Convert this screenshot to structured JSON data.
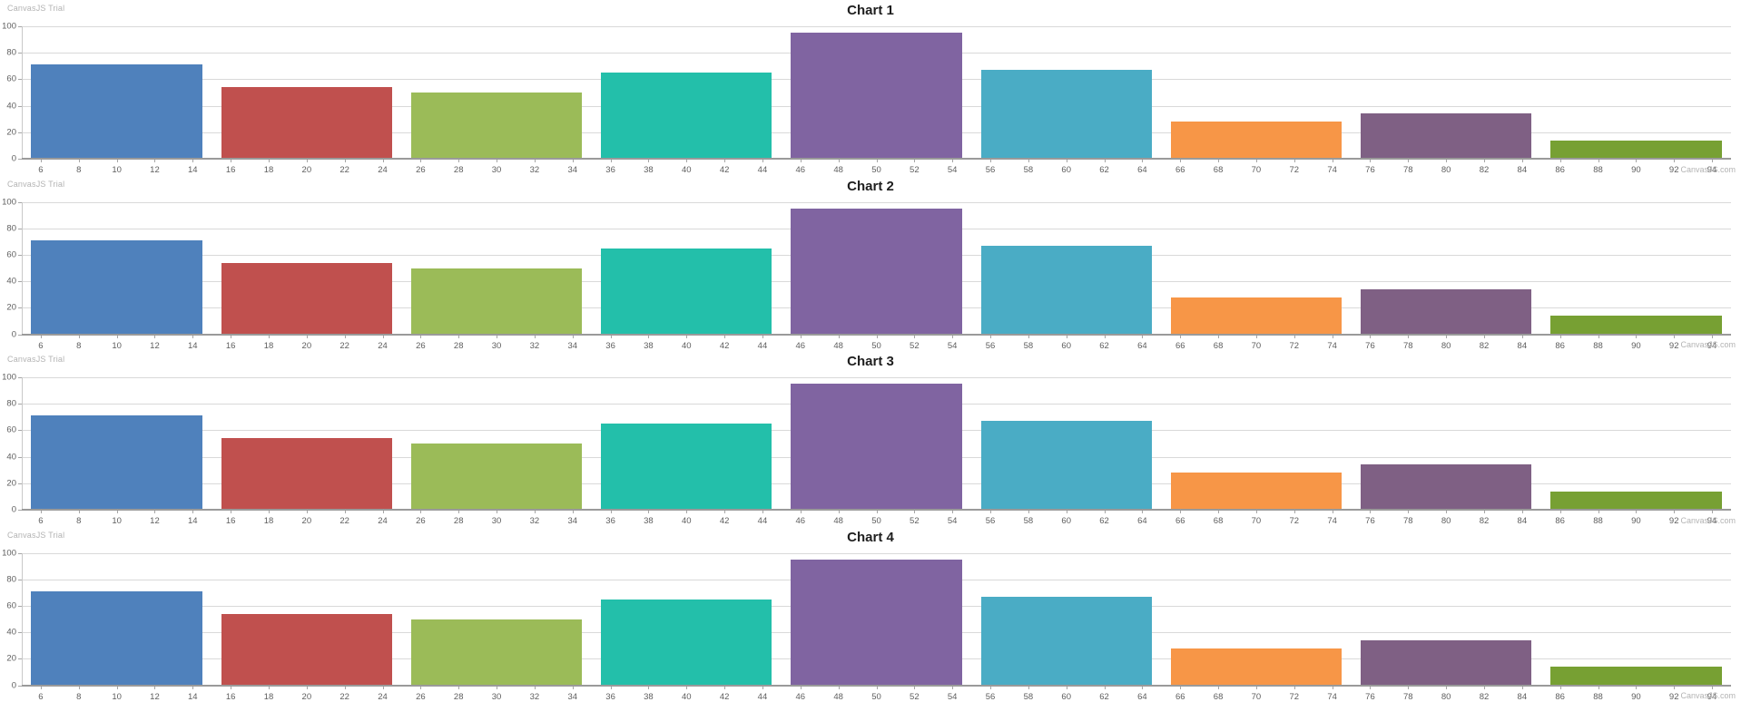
{
  "branding": {
    "trial_label": "CanvasJS Trial",
    "credit_label": "CanvasJS.com"
  },
  "colors": {
    "background": "#ffffff",
    "gridline": "#d9d9d9",
    "axis_line": "#9a9a9a",
    "tick": "#a6a6a6",
    "axis_label": "#5e5e5e",
    "title": "#1e1e1e",
    "watermark": "#b3b3b3"
  },
  "chart_data": [
    {
      "type": "bar",
      "title": "Chart 1",
      "x_centers": [
        10,
        20,
        30,
        40,
        50,
        60,
        70,
        80,
        90
      ],
      "values": [
        71,
        54,
        50,
        65,
        95,
        67,
        28,
        34,
        14
      ],
      "bar_width_x": 9,
      "bar_colors": [
        "#4F81BC",
        "#C0504E",
        "#9BBB58",
        "#23BFAA",
        "#8064A1",
        "#4AACC5",
        "#F79647",
        "#7F6084",
        "#77A033"
      ],
      "xlim": [
        5,
        95
      ],
      "ylim": [
        0,
        100
      ],
      "x_ticks": {
        "start": 6,
        "end": 94,
        "step": 2
      },
      "y_ticks": [
        0,
        20,
        40,
        60,
        80,
        100
      ],
      "grid": "horizontal",
      "legend": "none",
      "trial_label": "CanvasJS Trial",
      "credit_label": "CanvasJS.com"
    },
    {
      "type": "bar",
      "title": "Chart 2",
      "x_centers": [
        10,
        20,
        30,
        40,
        50,
        60,
        70,
        80,
        90
      ],
      "values": [
        71,
        54,
        50,
        65,
        95,
        67,
        28,
        34,
        14
      ],
      "bar_width_x": 9,
      "bar_colors": [
        "#4F81BC",
        "#C0504E",
        "#9BBB58",
        "#23BFAA",
        "#8064A1",
        "#4AACC5",
        "#F79647",
        "#7F6084",
        "#77A033"
      ],
      "xlim": [
        5,
        95
      ],
      "ylim": [
        0,
        100
      ],
      "x_ticks": {
        "start": 6,
        "end": 94,
        "step": 2
      },
      "y_ticks": [
        0,
        20,
        40,
        60,
        80,
        100
      ],
      "grid": "horizontal",
      "legend": "none",
      "trial_label": "CanvasJS Trial",
      "credit_label": "CanvasJS.com"
    },
    {
      "type": "bar",
      "title": "Chart 3",
      "x_centers": [
        10,
        20,
        30,
        40,
        50,
        60,
        70,
        80,
        90
      ],
      "values": [
        71,
        54,
        50,
        65,
        95,
        67,
        28,
        34,
        14
      ],
      "bar_width_x": 9,
      "bar_colors": [
        "#4F81BC",
        "#C0504E",
        "#9BBB58",
        "#23BFAA",
        "#8064A1",
        "#4AACC5",
        "#F79647",
        "#7F6084",
        "#77A033"
      ],
      "xlim": [
        5,
        95
      ],
      "ylim": [
        0,
        100
      ],
      "x_ticks": {
        "start": 6,
        "end": 94,
        "step": 2
      },
      "y_ticks": [
        0,
        20,
        40,
        60,
        80,
        100
      ],
      "grid": "horizontal",
      "legend": "none",
      "trial_label": "CanvasJS Trial",
      "credit_label": "CanvasJS.com"
    },
    {
      "type": "bar",
      "title": "Chart 4",
      "x_centers": [
        10,
        20,
        30,
        40,
        50,
        60,
        70,
        80,
        90
      ],
      "values": [
        71,
        54,
        50,
        65,
        95,
        67,
        28,
        34,
        14
      ],
      "bar_width_x": 9,
      "bar_colors": [
        "#4F81BC",
        "#C0504E",
        "#9BBB58",
        "#23BFAA",
        "#8064A1",
        "#4AACC5",
        "#F79647",
        "#7F6084",
        "#77A033"
      ],
      "xlim": [
        5,
        95
      ],
      "ylim": [
        0,
        100
      ],
      "x_ticks": {
        "start": 6,
        "end": 94,
        "step": 2
      },
      "y_ticks": [
        0,
        20,
        40,
        60,
        80,
        100
      ],
      "grid": "horizontal",
      "legend": "none",
      "trial_label": "CanvasJS Trial",
      "credit_label": "CanvasJS.com"
    }
  ]
}
